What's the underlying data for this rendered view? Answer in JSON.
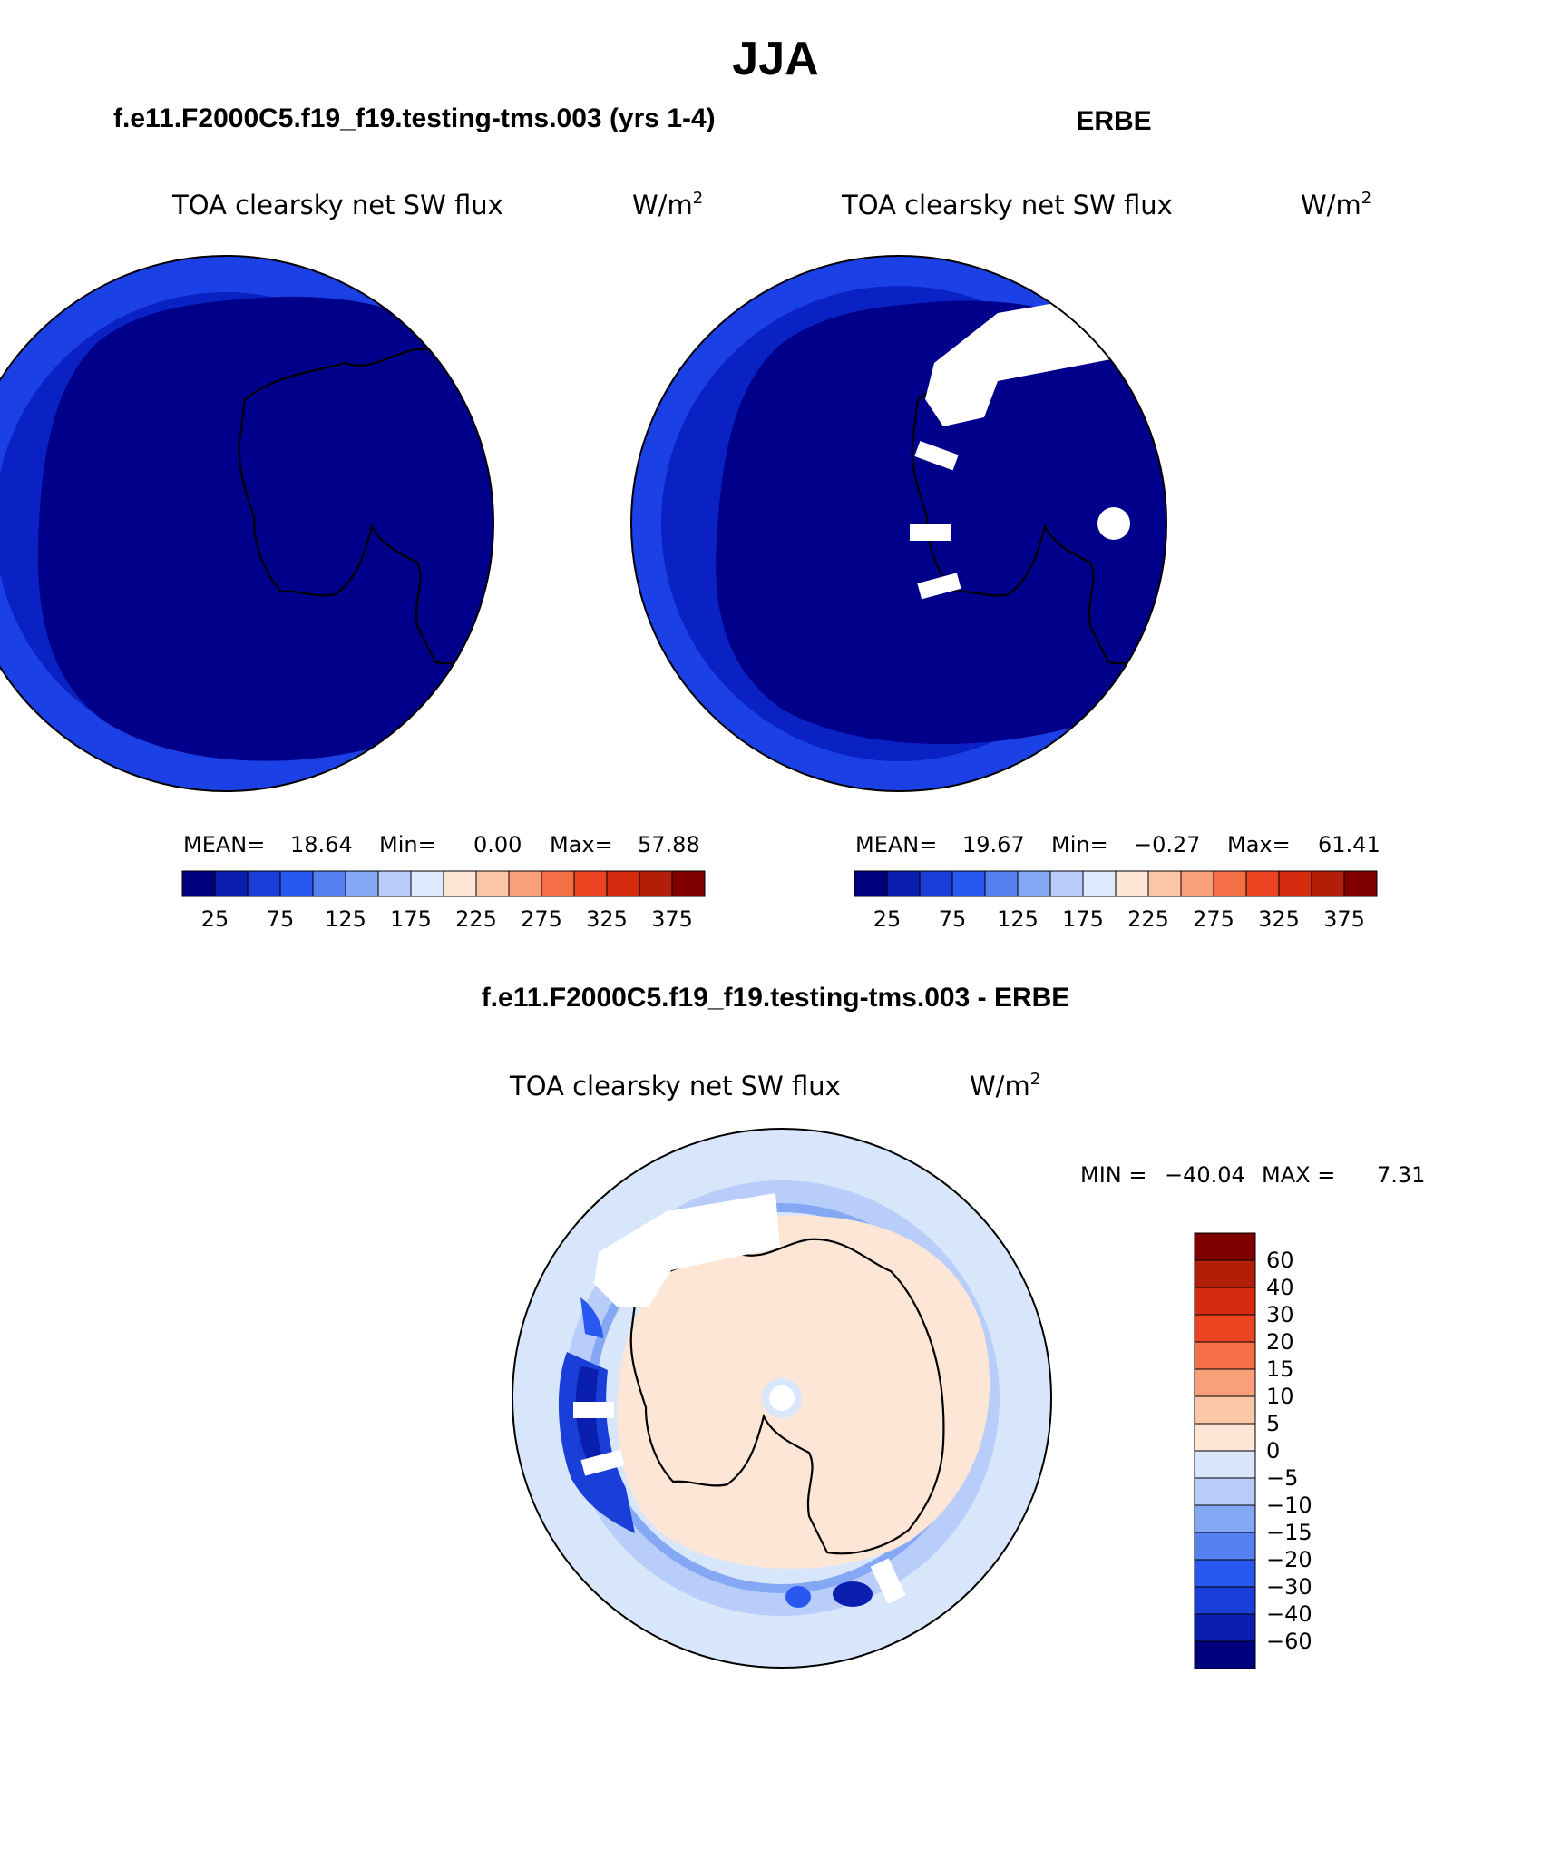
{
  "figure": {
    "title": "JJA",
    "left_panel_title": "f.e11.F2000C5.f19_f19.testing-tms.003 (yrs 1-4)",
    "right_panel_title": "ERBE",
    "diff_panel_title": "f.e11.F2000C5.f19_f19.testing-tms.003 - ERBE"
  },
  "variable": {
    "name": "TOA clearsky net SW flux",
    "units_base": "W/m",
    "units_exp": "2"
  },
  "colors": {
    "ocean_outer": "#1a40e6",
    "ocean_mid": "#0a22c4",
    "ocean_inner": "#00008a",
    "missing": "#ffffff",
    "coast": "#000000"
  },
  "panels": {
    "model": {
      "stats": {
        "mean_label": "MEAN=",
        "mean": "18.64",
        "min_label": "Min=",
        "min": "0.00",
        "max_label": "Max=",
        "max": "57.88"
      }
    },
    "obs": {
      "stats": {
        "mean_label": "MEAN=",
        "mean": "19.67",
        "min_label": "Min=",
        "min": "−0.27",
        "max_label": "Max=",
        "max": "61.41"
      }
    },
    "diff": {
      "minmax": {
        "min_label": "MIN =",
        "min": "−40.04",
        "max_label": "MAX =",
        "max": "7.31"
      }
    }
  },
  "chart_data": [
    {
      "type": "colorbar",
      "orientation": "horizontal",
      "labels": [
        "25",
        "75",
        "125",
        "175",
        "225",
        "275",
        "325",
        "375"
      ],
      "colors": [
        "#00007f",
        "#0a1fb0",
        "#1a3ed8",
        "#2858f0",
        "#5580f0",
        "#85a8f5",
        "#b9cdfa",
        "#dde9fc",
        "#fde6d5",
        "#fcc6a8",
        "#f9a07a",
        "#f46f45",
        "#ea4420",
        "#d42b0e",
        "#b31e08",
        "#800000"
      ]
    },
    {
      "type": "colorbar",
      "orientation": "vertical",
      "labels": [
        "60",
        "40",
        "30",
        "20",
        "15",
        "10",
        "5",
        "0",
        "−5",
        "−10",
        "−15",
        "−20",
        "−30",
        "−40",
        "−60"
      ],
      "colors": [
        "#800000",
        "#b31e08",
        "#d42b0e",
        "#ea4420",
        "#f46f45",
        "#f9a07a",
        "#fcc6a8",
        "#fde6d5",
        "#d8e6fb",
        "#b9cdfa",
        "#85a8f5",
        "#5580f0",
        "#2858f0",
        "#1a3ed8",
        "#0a1fb0",
        "#00007f"
      ]
    }
  ]
}
